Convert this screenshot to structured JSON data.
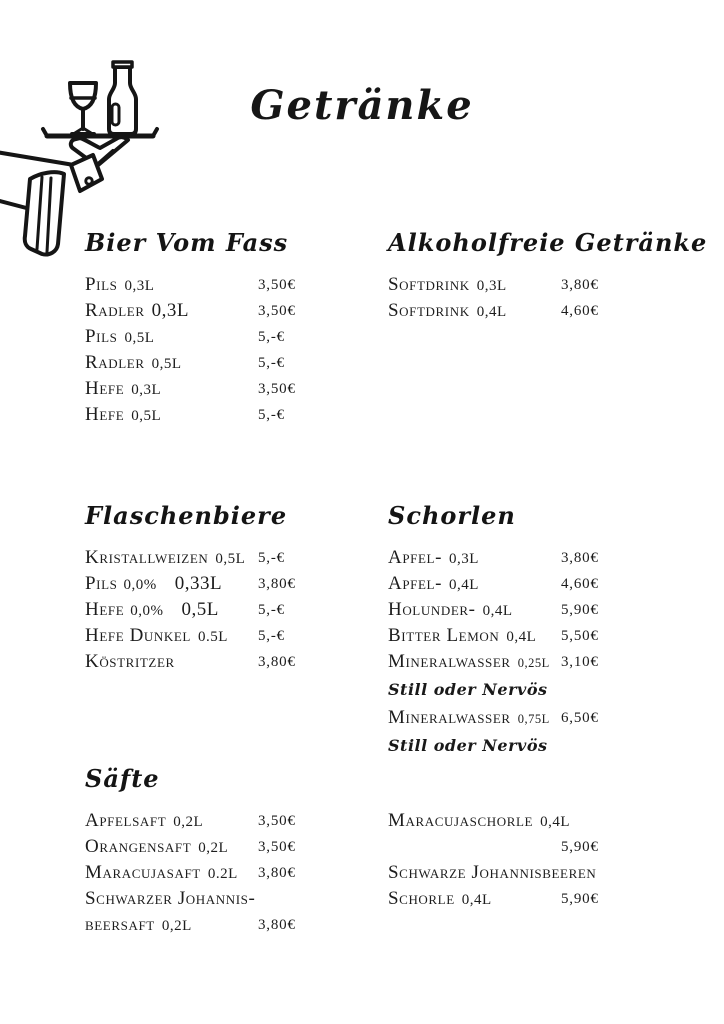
{
  "page": {
    "title": "Getränke",
    "background": "#ffffff",
    "ink": "#1d1d1d"
  },
  "illustration": {
    "icon": "waiter-arm-serving-tray-with-wine-glass-and-bottle"
  },
  "note_label": "Still oder Nervös",
  "sections": [
    {
      "id": "bier_vom_fass",
      "heading": "Bier Vom Fass",
      "rows": [
        {
          "name": "Pils",
          "qty": "0,3L",
          "price": "3,50€"
        },
        {
          "name": "Radler",
          "qty": "0,3L",
          "qty_style": "big",
          "price": "3,50€"
        },
        {
          "name": "Pils",
          "qty": "0,5L",
          "price": "5,-€"
        },
        {
          "name": "Radler",
          "qty": "0,5L",
          "price": "5,-€"
        },
        {
          "name": "Hefe",
          "qty": "0,3L",
          "price": "3,50€"
        },
        {
          "name": "Hefe",
          "qty": "0,5L",
          "price": "5,-€"
        }
      ]
    },
    {
      "id": "alkoholfreie_getraenke",
      "heading": "Alkoholfreie Getränke",
      "rows": [
        {
          "name": "Softdrink",
          "qty": "0,3L",
          "price": "3,80€"
        },
        {
          "name": "Softdrink",
          "qty": "0,4L",
          "price": "4,60€"
        }
      ]
    },
    {
      "id": "flaschenbiere",
      "heading": "Flaschenbiere",
      "rows": [
        {
          "name": "Kristallweizen",
          "qty": "0,5L",
          "price": "5,-€"
        },
        {
          "name": "Pils",
          "sub": "0,0%",
          "qty": "0,33L",
          "qty_style": "big gap",
          "price": "3,80€"
        },
        {
          "name": "Hefe",
          "sub": "0,0%",
          "qty": "0,5L",
          "qty_style": "big gap",
          "price": "5,-€"
        },
        {
          "name": "Hefe Dunkel",
          "qty": "0.5L",
          "price": "5,-€"
        },
        {
          "name": "Köstritzer",
          "price": "3,80€"
        }
      ]
    },
    {
      "id": "schorlen",
      "heading": "Schorlen",
      "rows": [
        {
          "name": "Apfel-",
          "qty": "0,3L",
          "price": "3,80€"
        },
        {
          "name": "Apfel-",
          "qty": "0,4L",
          "price": "4,60€"
        },
        {
          "name": "Holunder-",
          "qty": "0,4L",
          "price": "5,90€"
        },
        {
          "name": "Bitter Lemon",
          "qty": "0,4L",
          "price": "5,50€"
        },
        {
          "name": "Mineralwasser",
          "qty": "0,25L",
          "qty_style": "small",
          "price": "3,10€"
        },
        {
          "note": "Still oder Nervös"
        },
        {
          "name": "Mineralwasser",
          "qty": "0,75L",
          "qty_style": "small",
          "price": "6,50€"
        },
        {
          "note": "Still oder Nervös"
        }
      ]
    },
    {
      "id": "saefte",
      "heading": "Säfte",
      "rows": [
        {
          "name": "Apfelsaft",
          "qty": "0,2L",
          "price": "3,50€"
        },
        {
          "name": "Orangensaft",
          "qty": "0,2L",
          "price": "3,50€"
        },
        {
          "name": "Maracujasaft",
          "qty": "0.2L",
          "price": "3,80€"
        },
        {
          "name": "Schwarzer Johannis-"
        },
        {
          "name": "beersaft",
          "qty": "0,2L",
          "price": "3,80€"
        }
      ]
    },
    {
      "id": "schorlen_fortsetzung",
      "heading": "",
      "rows": [
        {
          "name": "Maracujaschorle",
          "qty": "0,4L"
        },
        {
          "price": "5,90€"
        },
        {
          "name": "Schwarze Johannisbeeren"
        },
        {
          "name": "Schorle",
          "qty": "0,4L",
          "price": "5,90€"
        }
      ]
    }
  ]
}
